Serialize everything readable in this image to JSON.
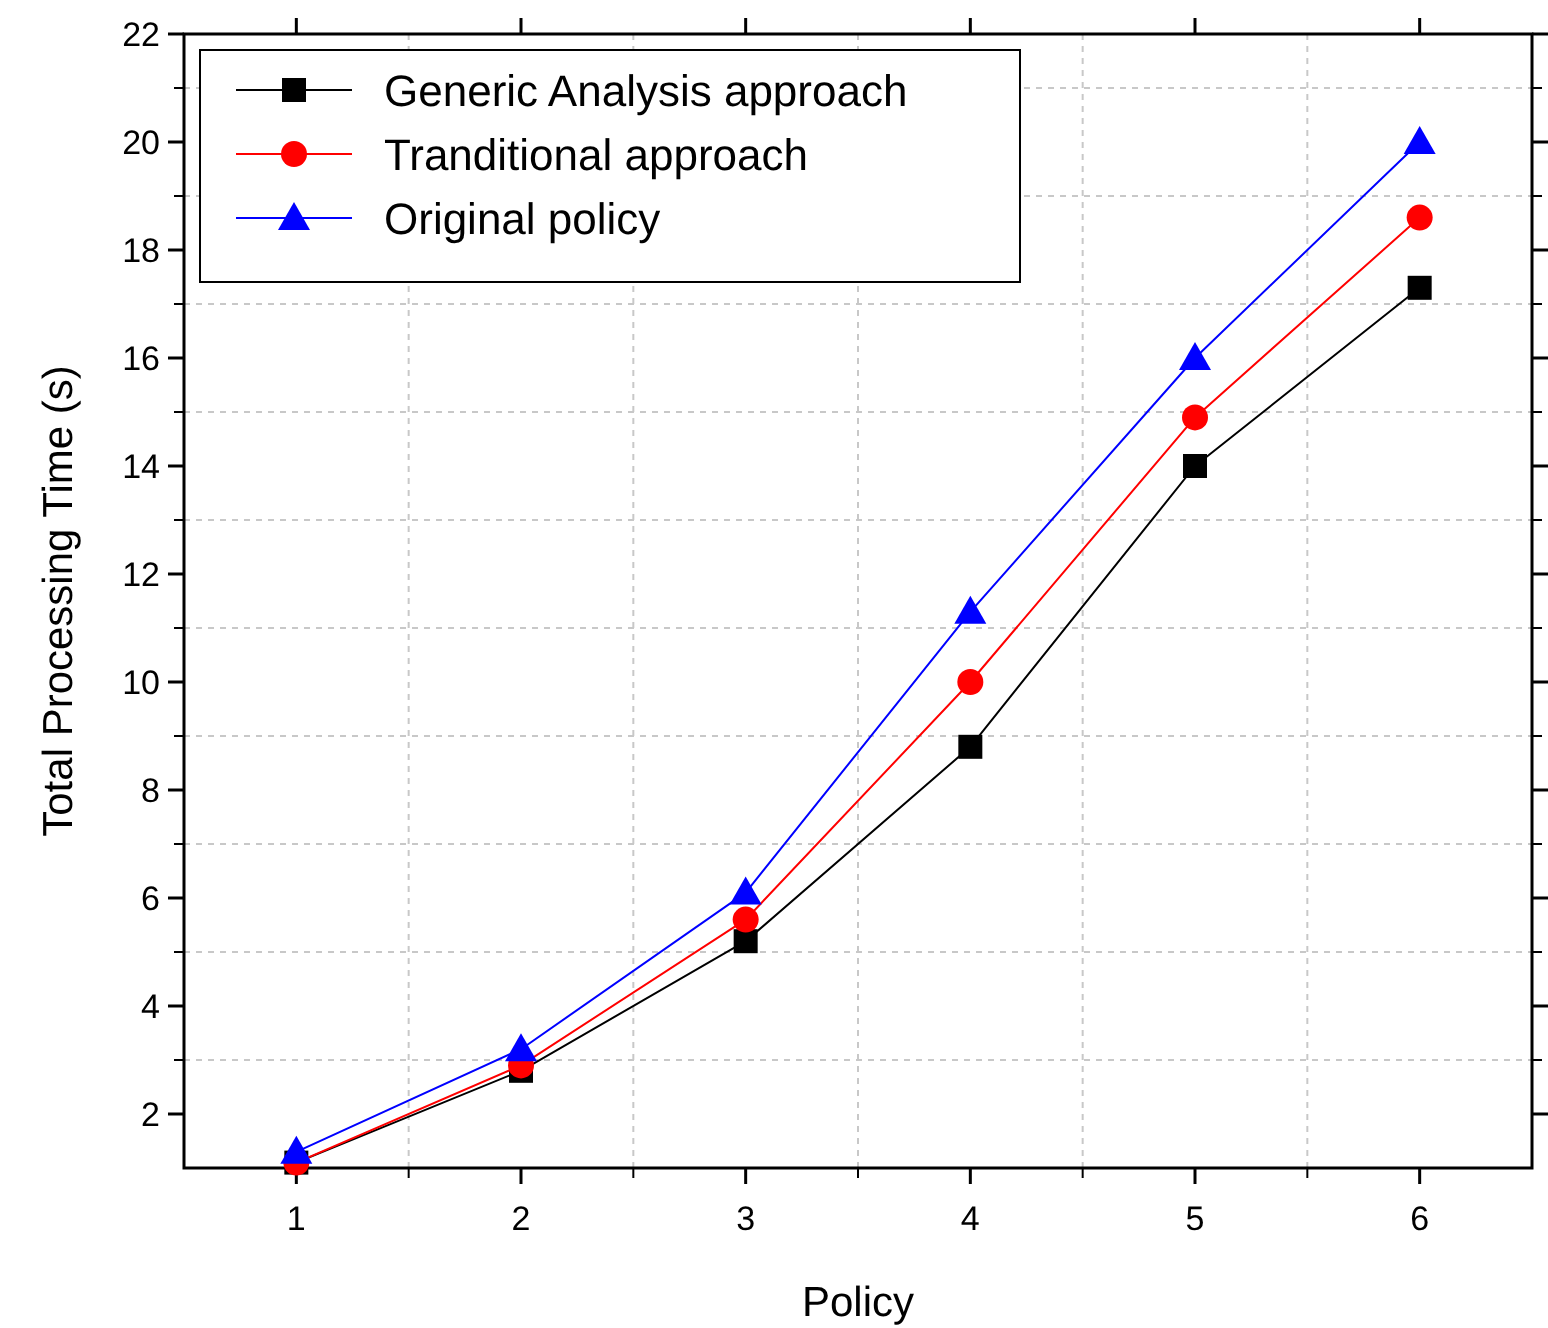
{
  "chart_data": {
    "type": "line",
    "xlabel": "Policy",
    "ylabel": "Total Processing Time (s)",
    "x": [
      1,
      2,
      3,
      4,
      5,
      6
    ],
    "xlim": [
      0.5,
      6.5
    ],
    "xticks": [
      1,
      2,
      3,
      4,
      5,
      6
    ],
    "ylim": [
      1,
      22
    ],
    "yticks": [
      2,
      4,
      6,
      8,
      10,
      12,
      14,
      16,
      18,
      20,
      22
    ],
    "grid": true,
    "legend": "top left",
    "series": [
      {
        "name": "Generic Analysis approach",
        "color": "#000000",
        "marker": "square",
        "values": [
          1.1,
          2.8,
          5.2,
          8.8,
          14.0,
          17.3
        ]
      },
      {
        "name": "Tranditional approach",
        "color": "#ff0000",
        "marker": "circle",
        "values": [
          1.1,
          2.9,
          5.6,
          10.0,
          14.9,
          18.6
        ]
      },
      {
        "name": "Original policy",
        "color": "#0000ff",
        "marker": "triangle",
        "values": [
          1.3,
          3.2,
          6.1,
          11.3,
          16.0,
          20.0
        ]
      }
    ]
  }
}
